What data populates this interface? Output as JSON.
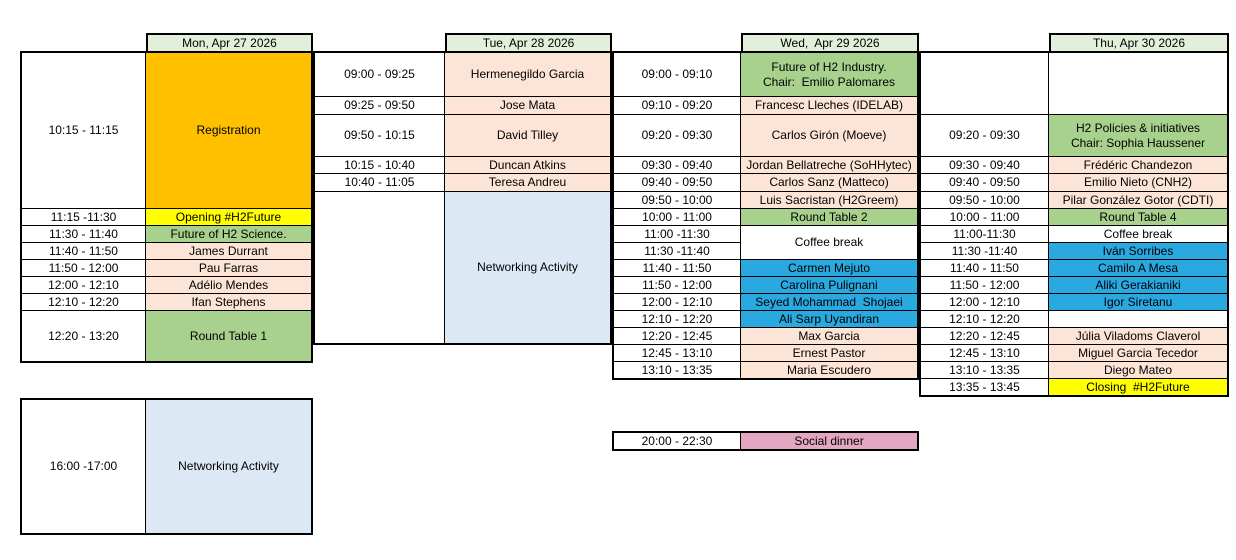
{
  "colors": {
    "header": "#E2EFDA",
    "peach": "#FCE4D6",
    "green": "#A9D18E",
    "orange": "#FFC000",
    "yellow": "#FFFF00",
    "blue": "#29A9E0",
    "lightblue": "#DCE9F5",
    "pink": "#E3A7C1",
    "white": "#FFFFFF",
    "border": "#000000"
  },
  "blocks": [
    {
      "id": "monday",
      "header": "Mon, Apr 27 2026",
      "rows": [
        {
          "time": "10:15 - 11:15",
          "label": "Registration",
          "type": "orange"
        },
        {
          "time": "11:15 -11:30",
          "label": "Opening #H2Future",
          "type": "yellow"
        },
        {
          "time": "11:30 - 11:40",
          "label": "Future of H2 Science.",
          "type": "green"
        },
        {
          "time": "11:40 - 11:50",
          "label": "James Durrant",
          "type": "peach"
        },
        {
          "time": "11:50 - 12:00",
          "label": "Pau Farras",
          "type": "peach"
        },
        {
          "time": "12:00 - 12:10",
          "label": "Adélio Mendes",
          "type": "peach"
        },
        {
          "time": "12:10 - 12:20",
          "label": "Ifan Stephens",
          "type": "peach"
        },
        {
          "time": "12:20 - 13:20",
          "label": "Round Table 1",
          "type": "green"
        }
      ]
    },
    {
      "id": "tuesday",
      "header": "Tue, Apr 28 2026",
      "rows": [
        {
          "time": "09:00 - 09:25",
          "label": "Hermenegildo Garcia",
          "type": "peach"
        },
        {
          "time": "09:25 - 09:50",
          "label": "Jose Mata",
          "type": "peach"
        },
        {
          "time": "09:50 - 10:15",
          "label": "David Tilley",
          "type": "peach"
        },
        {
          "time": "10:15 - 10:40",
          "label": "Duncan Atkins",
          "type": "peach"
        },
        {
          "time": "10:40 - 11:05",
          "label": "Teresa Andreu",
          "type": "peach"
        },
        {
          "time": "",
          "label": "Networking Activity",
          "type": "lightblue"
        }
      ]
    },
    {
      "id": "wednesday",
      "header": "Wed,  Apr 29 2026",
      "rows": [
        {
          "time": "09:00 - 09:10",
          "label": "Future of H2 Industry.\nChair:  Emilio Palomares",
          "type": "green"
        },
        {
          "time": "09:10 - 09:20",
          "label": "Francesc Lleches (IDELAB)",
          "type": "peach"
        },
        {
          "time": "09:20 - 09:30",
          "label": "Carlos Girón (Moeve)",
          "type": "peach"
        },
        {
          "time": "09:30 - 09:40",
          "label": "Jordan Bellatreche (SoHHytec)",
          "type": "peach"
        },
        {
          "time": "09:40 - 09:50",
          "label": "Carlos Sanz (Matteco)",
          "type": "peach"
        },
        {
          "time": "09:50 - 10:00",
          "label": "Luis Sacristan (H2Greem)",
          "type": "peach"
        },
        {
          "time": "10:00 - 11:00",
          "label": "Round Table 2",
          "type": "green"
        },
        {
          "times": [
            "11:00 -11:30",
            "11:30 -11:40"
          ],
          "label": "Coffee break",
          "type": "white"
        },
        {
          "time": "11:40 - 11:50",
          "label": "Carmen Mejuto",
          "type": "blue"
        },
        {
          "time": "11:50 - 12:00",
          "label": "Carolina Pulignani",
          "type": "blue"
        },
        {
          "time": "12:00 - 12:10",
          "label": "Seyed Mohammad  Shojaei",
          "type": "blue"
        },
        {
          "time": "12:10 - 12:20",
          "label": "Ali Sarp Uyandiran",
          "type": "blue"
        },
        {
          "time": "12:20 - 12:45",
          "label": "Max Garcia",
          "type": "peach"
        },
        {
          "time": "12:45 - 13:10",
          "label": "Ernest Pastor",
          "type": "peach"
        },
        {
          "time": "13:10 - 13:35",
          "label": "Maria Escudero",
          "type": "peach"
        }
      ]
    },
    {
      "id": "thursday",
      "header": "Thu, Apr 30 2026",
      "rows": [
        {
          "time": "",
          "label": "",
          "type": "white"
        },
        {
          "time": "09:20 - 09:30",
          "label": "H2 Policies & initiatives\nChair: Sophia Haussener",
          "type": "green"
        },
        {
          "time": "09:30 - 09:40",
          "label": "Frédéric Chandezon",
          "type": "peach"
        },
        {
          "time": "09:40 - 09:50",
          "label": "Emilio Nieto (CNH2)",
          "type": "peach"
        },
        {
          "time": "09:50 - 10:00",
          "label": "Pilar González Gotor (CDTI)",
          "type": "peach"
        },
        {
          "time": "10:00 - 11:00",
          "label": "Round Table 4",
          "type": "green"
        },
        {
          "time": "11:00-11:30",
          "label": "Coffee break",
          "type": "white"
        },
        {
          "time": "11:30 -11:40",
          "label": "Iván Sorribes",
          "type": "blue"
        },
        {
          "time": "11:40 - 11:50",
          "label": "Camilo A Mesa",
          "type": "blue"
        },
        {
          "time": "11:50 - 12:00",
          "label": "Aliki Gerakianiki",
          "type": "blue"
        },
        {
          "time": "12:00 - 12:10",
          "label": "Igor Siretanu",
          "type": "blue"
        },
        {
          "time": "12:10 - 12:20",
          "label": "",
          "type": "white"
        },
        {
          "time": "12:20 - 12:45",
          "label": "Júlia Viladoms Claverol",
          "type": "peach"
        },
        {
          "time": "12:45 - 13:10",
          "label": "Miguel Garcia Tecedor",
          "type": "peach"
        },
        {
          "time": "13:10 - 13:35",
          "label": "Diego Mateo",
          "type": "peach"
        },
        {
          "time": "13:35 - 13:45",
          "label": "Closing  #H2Future",
          "type": "yellow"
        }
      ]
    },
    {
      "id": "monday-evening",
      "rows": [
        {
          "time": "16:00 -17:00",
          "label": "Networking Activity",
          "type": "lightblue"
        }
      ]
    },
    {
      "id": "wednesday-dinner",
      "rows": [
        {
          "time": "20:00 - 22:30",
          "label": "Social dinner",
          "type": "pink"
        }
      ]
    }
  ]
}
